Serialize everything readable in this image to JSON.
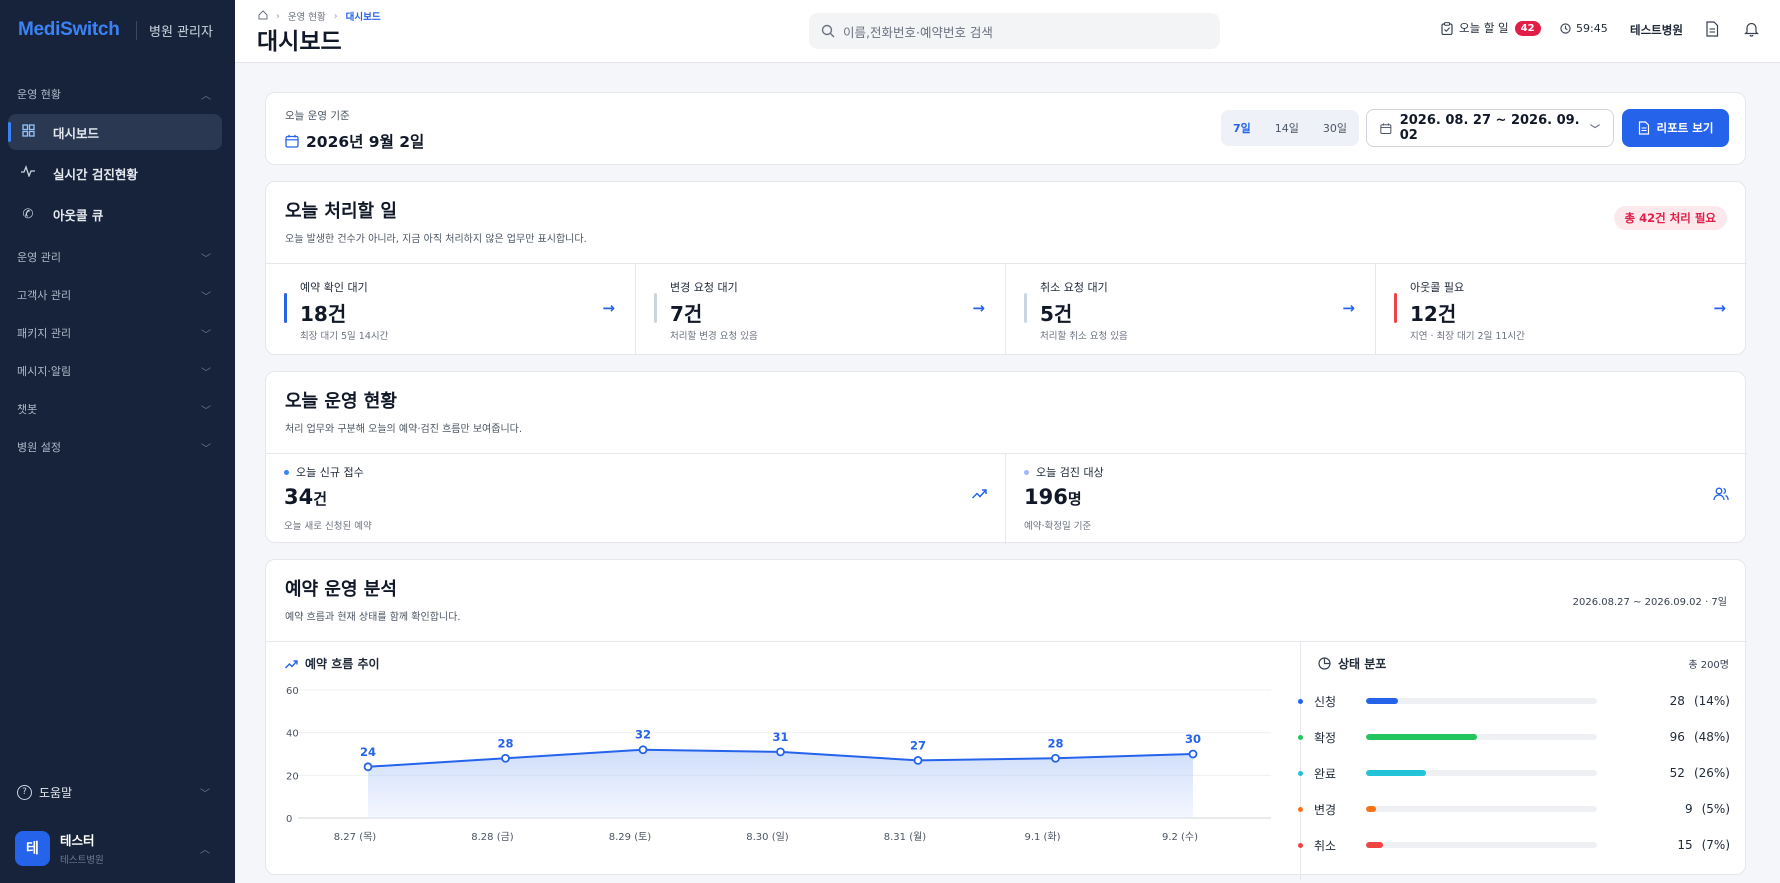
{
  "sidebar": {
    "logo": "MediSwitch",
    "logo_sub": "병원 관리자",
    "sections": {
      "ops_status": "운영 현황",
      "ops_manage": "운영 관리",
      "clients": "고객사 관리",
      "packages": "패키지 관리",
      "messages": "메시지·알림",
      "chatbot": "챗봇",
      "hospital_settings": "병원 설정"
    },
    "nav": {
      "dashboard": "대시보드",
      "realtime": "실시간 검진현황",
      "outcall": "아웃콜 큐"
    },
    "help": "도움말",
    "user": {
      "avatar": "테",
      "name": "테스터",
      "hospital": "테스트병원"
    }
  },
  "header": {
    "breadcrumb": [
      "운영 현황",
      "대시보드"
    ],
    "title": "대시보드",
    "search_placeholder": "이름,전화번호·예약번호 검색",
    "todo_label": "오늘 할 일",
    "todo_count": "42",
    "time": "59:45",
    "hospital": "테스트병원"
  },
  "date_bar": {
    "label": "오늘 운영 기준",
    "date": "2026년 9월 2일",
    "ranges": [
      "7일",
      "14일",
      "30일"
    ],
    "active_range": "7일",
    "date_range": "2026. 08. 27 ~ 2026. 09. 02",
    "report_button": "리포트 보기"
  },
  "today_tasks": {
    "title": "오늘 처리할 일",
    "subtitle": "오늘 발생한 건수가 아니라, 지금 아직 처리하지 않은 업무만 표시합니다.",
    "total_badge": "총 42건 처리 필요",
    "tiles": [
      {
        "label": "예약 확인 대기",
        "value": "18건",
        "sub": "최장 대기 5일 14시간",
        "accent": "#2563eb"
      },
      {
        "label": "변경 요청 대기",
        "value": "7건",
        "sub": "처리할 변경 요청 있음",
        "accent": "#cbd5e1"
      },
      {
        "label": "취소 요청 대기",
        "value": "5건",
        "sub": "처리할 취소 요청 있음",
        "accent": "#cbd5e1"
      },
      {
        "label": "아웃콜 필요",
        "value": "12건",
        "sub": "지연 · 최장 대기 2일 11시간",
        "accent": "#ef4444"
      }
    ]
  },
  "today_ops": {
    "title": "오늘 운영 현황",
    "subtitle": "처리 업무와 구분해 오늘의 예약·검진 흐름만 보여줍니다.",
    "metrics": [
      {
        "label": "오늘 신규 접수",
        "value": "34",
        "unit": "건",
        "sub": "오늘 새로 신청된 예약",
        "icon": "trending-up-icon",
        "dot": "#3b82f6"
      },
      {
        "label": "오늘 검진 대상",
        "value": "196",
        "unit": "명",
        "sub": "예약·확정일 기준",
        "icon": "users-icon",
        "dot": "#a5b4fc"
      }
    ]
  },
  "analysis": {
    "title": "예약 운영 분석",
    "subtitle": "예약 흐름과 현재 상태를 함께 확인합니다.",
    "range_text": "2026.08.27 ~ 2026.09.02 · 7일",
    "trend_title": "예약 흐름 추이",
    "dist_title": "상태 분포",
    "dist_total": "총 200명"
  },
  "chart_data": [
    {
      "type": "area",
      "title": "예약 흐름 추이",
      "categories": [
        "8.27 (목)",
        "8.28 (금)",
        "8.29 (토)",
        "8.30 (일)",
        "8.31 (월)",
        "9.1 (화)",
        "9.2 (수)"
      ],
      "values": [
        24,
        28,
        32,
        31,
        27,
        28,
        30
      ],
      "ylim": [
        0,
        60
      ],
      "yticks": [
        0,
        20,
        40,
        60
      ],
      "grid": true,
      "color": "#2563eb"
    },
    {
      "type": "bar",
      "title": "상태 분포",
      "total": "총 200명",
      "categories": [
        "신청",
        "확정",
        "완료",
        "변경",
        "취소"
      ],
      "values": [
        28,
        96,
        52,
        9,
        15
      ],
      "percents": [
        "(14%)",
        "(48%)",
        "(26%)",
        "(5%)",
        "(7%)"
      ],
      "colors": [
        "#2563eb",
        "#22c55e",
        "#22c3d6",
        "#f97316",
        "#ef4444"
      ]
    }
  ]
}
